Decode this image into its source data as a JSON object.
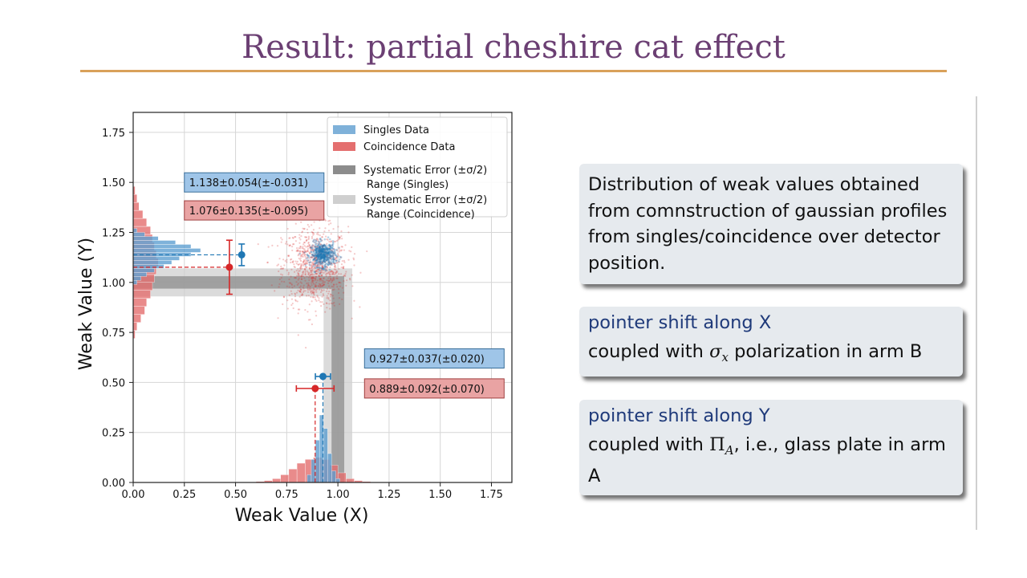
{
  "slide": {
    "title": "Result: partial cheshire cat effect"
  },
  "info_boxes": [
    {
      "body": "Distribution of weak values obtained from comnstruction of gaussian profiles from singles/coincidence over detector position."
    },
    {
      "heading": "pointer shift along X",
      "body_prefix": "coupled with ",
      "math_symbol": "σ",
      "math_sub": "x",
      "body_suffix": " polarization in arm B"
    },
    {
      "heading": "pointer shift along Y",
      "body_prefix": "coupled with ",
      "math_symbol": "Π",
      "math_sub": "A",
      "body_suffix": ", i.e., glass plate in arm A"
    }
  ],
  "colors": {
    "title": "#6b3f73",
    "rule": "#d9a15a",
    "singles": "#1f77b4",
    "coincidence": "#d62728",
    "box_heading": "#1f3a7a"
  },
  "chart_data": {
    "type": "scatter",
    "xlabel": "Weak Value (X)",
    "ylabel": "Weak Value (Y)",
    "xlim": [
      0.0,
      1.85
    ],
    "ylim": [
      0.0,
      1.85
    ],
    "xticks": [
      "0.00",
      "0.25",
      "0.50",
      "0.75",
      "1.00",
      "1.25",
      "1.50",
      "1.75"
    ],
    "yticks": [
      "0.00",
      "0.25",
      "0.50",
      "0.75",
      "1.00",
      "1.25",
      "1.50",
      "1.75"
    ],
    "grid": true,
    "legend_position": "top-right",
    "legend": [
      {
        "label": "Singles Data",
        "kind": "patch",
        "color": "#7fb1d9"
      },
      {
        "label": "Coincidence Data",
        "kind": "patch",
        "color": "#e46f6f"
      },
      {
        "label": "Systematic Error (±σ/2)\nRange (Singles)",
        "kind": "band",
        "color": "#8c8c8c"
      },
      {
        "label": "Systematic Error (±σ/2)\nRange (Coincidence)",
        "kind": "band",
        "color": "#cfcfcf"
      }
    ],
    "series": [
      {
        "name": "Singles Data",
        "center": [
          0.927,
          1.138
        ],
        "x_error": 0.037,
        "y_error": 0.054,
        "spread": [
          0.03,
          0.03
        ],
        "color": "#1f77b4"
      },
      {
        "name": "Coincidence Data",
        "center": [
          0.889,
          1.076
        ],
        "x_error": 0.092,
        "y_error": 0.135,
        "spread": [
          0.08,
          0.1
        ],
        "color": "#d62728"
      }
    ],
    "pointer_markers": [
      {
        "series": "Singles Data",
        "axis": "y",
        "x": 0.53,
        "y": 1.138,
        "err": 0.054,
        "color": "#1f77b4"
      },
      {
        "series": "Coincidence Data",
        "axis": "y",
        "x": 0.47,
        "y": 1.076,
        "err": 0.135,
        "color": "#d62728"
      },
      {
        "series": "Singles Data",
        "axis": "x",
        "x": 0.927,
        "y": 0.53,
        "err": 0.037,
        "color": "#1f77b4"
      },
      {
        "series": "Coincidence Data",
        "axis": "x",
        "x": 0.889,
        "y": 0.47,
        "err": 0.092,
        "color": "#d62728"
      }
    ],
    "systematic_bands": [
      {
        "name": "Range (Singles)",
        "center": 1.0,
        "half_width": 0.031,
        "color": "#8c8c8c"
      },
      {
        "name": "Range (Coincidence)",
        "center": 1.0,
        "half_width": 0.07,
        "color": "#cfcfcf"
      }
    ],
    "histograms": {
      "y_singles": {
        "bins": [
          1.0,
          1.02,
          1.04,
          1.06,
          1.08,
          1.1,
          1.12,
          1.14,
          1.16,
          1.18,
          1.2,
          1.22,
          1.24,
          1.26
        ],
        "counts": [
          0.02,
          0.04,
          0.07,
          0.11,
          0.16,
          0.2,
          0.24,
          0.3,
          0.35,
          0.3,
          0.22,
          0.13,
          0.06,
          0.02
        ]
      },
      "y_coinc": {
        "bins": [
          0.74,
          0.78,
          0.82,
          0.86,
          0.9,
          0.94,
          0.98,
          1.02,
          1.06,
          1.1,
          1.14,
          1.18,
          1.22,
          1.26,
          1.3,
          1.34,
          1.38,
          1.42,
          1.46
        ],
        "counts": [
          0.01,
          0.02,
          0.04,
          0.06,
          0.07,
          0.09,
          0.1,
          0.11,
          0.12,
          0.13,
          0.12,
          0.11,
          0.1,
          0.09,
          0.07,
          0.05,
          0.03,
          0.02,
          0.01
        ]
      },
      "x_singles": {
        "bins": [
          0.86,
          0.88,
          0.9,
          0.92,
          0.94,
          0.96,
          0.98,
          1.0
        ],
        "counts": [
          0.04,
          0.12,
          0.22,
          0.35,
          0.28,
          0.15,
          0.06,
          0.02
        ]
      },
      "x_coinc": {
        "bins": [
          0.62,
          0.66,
          0.7,
          0.74,
          0.78,
          0.82,
          0.86,
          0.9,
          0.94,
          0.98,
          1.02,
          1.06,
          1.1,
          1.14
        ],
        "counts": [
          0.005,
          0.01,
          0.02,
          0.04,
          0.07,
          0.1,
          0.12,
          0.13,
          0.12,
          0.09,
          0.05,
          0.02,
          0.01,
          0.005
        ]
      }
    },
    "annotations": [
      {
        "text": "1.138±0.054(±-0.031)",
        "series": "Singles Data",
        "x": 0.25,
        "y": 1.5,
        "color": "#9fc5e8",
        "border": "#3a6f9a"
      },
      {
        "text": "1.076±0.135(±-0.095)",
        "series": "Coincidence Data",
        "x": 0.25,
        "y": 1.36,
        "color": "#e9a3a3",
        "border": "#a04040"
      },
      {
        "text": "0.927±0.037(±0.020)",
        "series": "Singles Data",
        "x": 1.13,
        "y": 0.62,
        "color": "#9fc5e8",
        "border": "#3a6f9a"
      },
      {
        "text": "0.889±0.092(±0.070)",
        "series": "Coincidence Data",
        "x": 1.13,
        "y": 0.47,
        "color": "#e9a3a3",
        "border": "#a04040"
      }
    ]
  }
}
